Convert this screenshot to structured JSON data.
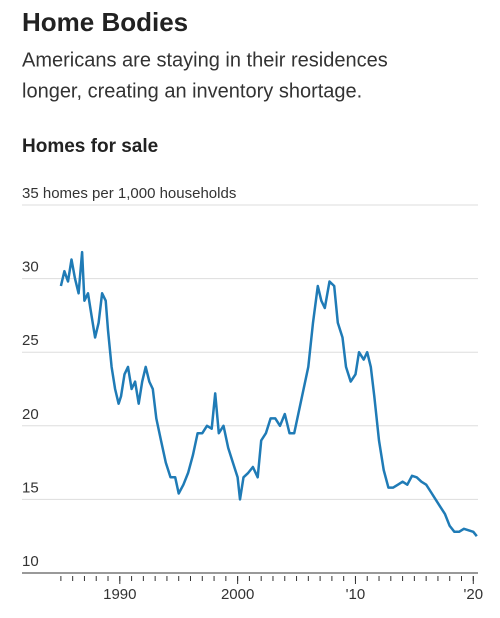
{
  "chart_data": {
    "type": "line",
    "title": "Home Bodies",
    "subtitle": [
      "Americans are staying in their residences",
      "longer, creating an inventory shortage."
    ],
    "chart_title": "Homes for sale",
    "x": [
      1985.0,
      1985.3,
      1985.6,
      1985.9,
      1986.2,
      1986.5,
      1986.8,
      1987.0,
      1987.3,
      1987.6,
      1987.9,
      1988.2,
      1988.5,
      1988.8,
      1989.0,
      1989.3,
      1989.6,
      1989.9,
      1990.1,
      1990.4,
      1990.7,
      1991.0,
      1991.3,
      1991.6,
      1991.9,
      1992.2,
      1992.5,
      1992.8,
      1993.1,
      1993.5,
      1993.9,
      1994.3,
      1994.7,
      1995.0,
      1995.4,
      1995.8,
      1996.2,
      1996.6,
      1997.0,
      1997.4,
      1997.8,
      1998.1,
      1998.4,
      1998.8,
      1999.2,
      1999.6,
      2000.0,
      2000.2,
      2000.5,
      2000.9,
      2001.3,
      2001.7,
      2002.0,
      2002.4,
      2002.8,
      2003.2,
      2003.6,
      2004.0,
      2004.4,
      2004.8,
      2005.2,
      2005.6,
      2006.0,
      2006.4,
      2006.8,
      2007.1,
      2007.4,
      2007.8,
      2008.2,
      2008.5,
      2008.9,
      2009.2,
      2009.6,
      2010.0,
      2010.3,
      2010.7,
      2011.0,
      2011.3,
      2011.6,
      2012.0,
      2012.4,
      2012.8,
      2013.2,
      2013.6,
      2014.0,
      2014.4,
      2014.8,
      2015.2,
      2015.6,
      2016.0,
      2016.4,
      2016.8,
      2017.2,
      2017.6,
      2018.0,
      2018.4,
      2018.8,
      2019.2,
      2019.6,
      2020.0,
      2020.3
    ],
    "series": [
      {
        "name": "Homes for sale",
        "color": "#1f7bb6",
        "values": [
          29.5,
          30.5,
          29.8,
          31.3,
          30,
          29,
          31.8,
          28.5,
          29,
          27.5,
          26,
          27,
          29,
          28.5,
          26.5,
          24,
          22.5,
          21.5,
          22,
          23.5,
          24,
          22.5,
          23,
          21.5,
          23,
          24,
          23,
          22.5,
          20.5,
          19,
          17.5,
          16.5,
          16.5,
          15.4,
          16,
          16.8,
          18,
          19.5,
          19.5,
          20,
          19.8,
          22.2,
          19.5,
          20,
          18.5,
          17.5,
          16.5,
          15,
          16.5,
          16.8,
          17.2,
          16.5,
          19,
          19.5,
          20.5,
          20.5,
          20,
          20.8,
          19.5,
          19.5,
          21,
          22.5,
          24,
          27,
          29.5,
          28.5,
          28,
          29.8,
          29.5,
          27,
          26,
          24,
          23,
          23.5,
          25,
          24.5,
          25,
          24,
          22,
          19,
          17,
          15.8,
          15.8,
          16,
          16.2,
          16,
          16.6,
          16.5,
          16.2,
          16,
          15.5,
          15,
          14.5,
          14,
          13.2,
          12.8,
          12.8,
          13,
          12.9,
          12.8,
          12.5
        ]
      }
    ],
    "xlim": [
      1981.7,
      2020.4
    ],
    "xticks": [
      1990,
      2000,
      {
        "value": 2010,
        "label": "'10"
      },
      {
        "value": 2020,
        "label": "'20"
      }
    ],
    "xminorticks": [
      1985,
      1986,
      1987,
      1988,
      1989,
      1990,
      1991,
      1992,
      1993,
      1994,
      1995,
      1996,
      1997,
      1998,
      1999,
      2000,
      2001,
      2002,
      2003,
      2004,
      2005,
      2006,
      2007,
      2008,
      2009,
      2010,
      2011,
      2012,
      2013,
      2014,
      2015,
      2016,
      2017,
      2018,
      2019,
      2020
    ],
    "ylim": [
      10,
      35
    ],
    "yticks": [
      10,
      15,
      20,
      25,
      30,
      {
        "value": 35,
        "label": "35 homes per 1,000 households"
      }
    ],
    "grid": true
  }
}
